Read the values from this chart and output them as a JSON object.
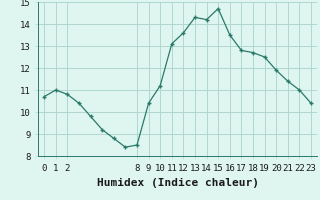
{
  "xlabel": "Humidex (Indice chaleur)",
  "x": [
    0,
    1,
    2,
    3,
    4,
    5,
    6,
    7,
    8,
    9,
    10,
    11,
    12,
    13,
    14,
    15,
    16,
    17,
    18,
    19,
    20,
    21,
    22,
    23
  ],
  "y": [
    10.7,
    11.0,
    10.8,
    10.4,
    9.8,
    9.2,
    8.8,
    8.4,
    8.5,
    10.4,
    11.2,
    13.1,
    13.6,
    14.3,
    14.2,
    14.7,
    13.5,
    12.8,
    12.7,
    12.5,
    11.9,
    11.4,
    11.0,
    10.4
  ],
  "line_color": "#2a7a6a",
  "marker": "+",
  "background_color": "#dff5f0",
  "grid_color": "#b0d8d0",
  "ylim": [
    8,
    15
  ],
  "yticks": [
    8,
    9,
    10,
    11,
    12,
    13,
    14,
    15
  ],
  "xticks": [
    0,
    1,
    2,
    8,
    9,
    10,
    11,
    12,
    13,
    14,
    15,
    16,
    17,
    18,
    19,
    20,
    21,
    22,
    23
  ],
  "tick_fontsize": 6.5,
  "label_fontsize": 8
}
